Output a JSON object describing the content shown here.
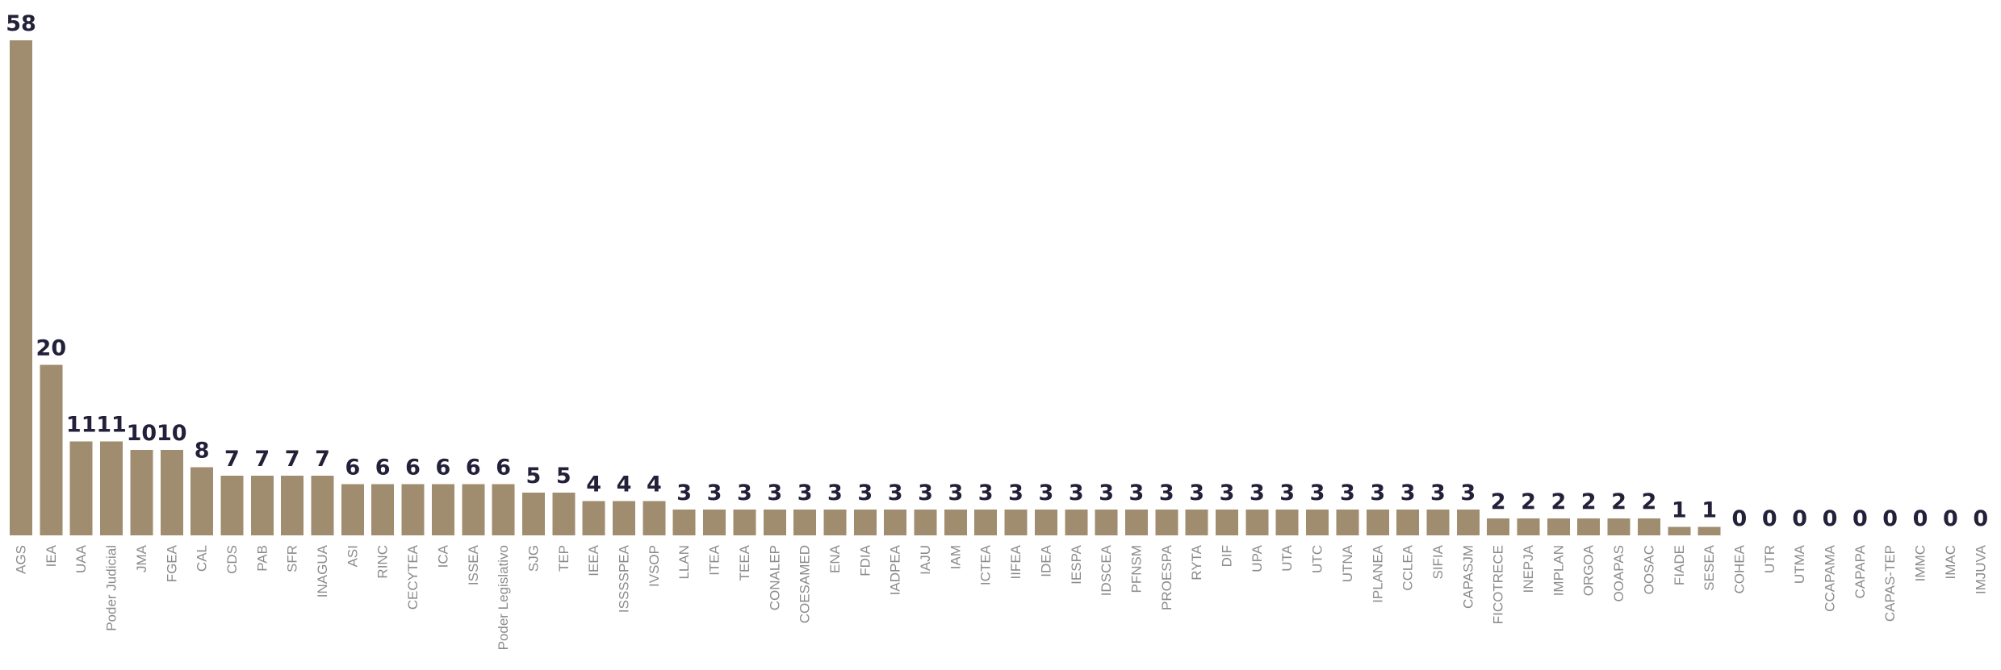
{
  "chart_data": {
    "type": "bar",
    "title": "",
    "xlabel": "",
    "ylabel": "",
    "ylim": [
      0,
      58
    ],
    "grid": false,
    "legend": "none",
    "colors": {
      "bar": "#a08c6f",
      "value_label": "#23213a",
      "tick_label": "#8b8b8b"
    },
    "categories": [
      "AGS",
      "IEA",
      "UAA",
      "Poder Judicial",
      "JMA",
      "FGEA",
      "CAL",
      "CDS",
      "PAB",
      "SFR",
      "INAGUA",
      "ASI",
      "RINC",
      "CECYTEA",
      "ICA",
      "ISSEA",
      "Poder Legislativo",
      "SJG",
      "TEP",
      "IEEA",
      "ISSSSPEA",
      "IVSOP",
      "LLAN",
      "ITEA",
      "TEEA",
      "CONALEP",
      "COESAMED",
      "ENA",
      "FDIA",
      "IADPEA",
      "IAJU",
      "IAM",
      "ICTEA",
      "IIFEA",
      "IDEA",
      "IESPA",
      "IDSCEA",
      "PFNSM",
      "PROESPA",
      "RYTA",
      "DIF",
      "UPA",
      "UTA",
      "UTC",
      "UTNA",
      "IPLANEA",
      "CCLEA",
      "SIFIA",
      "CAPASJM",
      "FICOTRECE",
      "INEPJA",
      "IMPLAN",
      "ORGOA",
      "OOAPAS",
      "OOSAC",
      "FIADE",
      "SESEA",
      "COHEA",
      "UTR",
      "UTMA",
      "CCAPAMA",
      "CAPAPA",
      "CAPAS-TEP",
      "IMMC",
      "IMAC",
      "IMJUVA"
    ],
    "values": [
      58,
      20,
      11,
      11,
      10,
      10,
      8,
      7,
      7,
      7,
      7,
      6,
      6,
      6,
      6,
      6,
      6,
      5,
      5,
      4,
      4,
      4,
      3,
      3,
      3,
      3,
      3,
      3,
      3,
      3,
      3,
      3,
      3,
      3,
      3,
      3,
      3,
      3,
      3,
      3,
      3,
      3,
      3,
      3,
      3,
      3,
      3,
      3,
      3,
      2,
      2,
      2,
      2,
      2,
      2,
      1,
      1,
      0,
      0,
      0,
      0,
      0,
      0,
      0,
      0,
      0
    ]
  }
}
